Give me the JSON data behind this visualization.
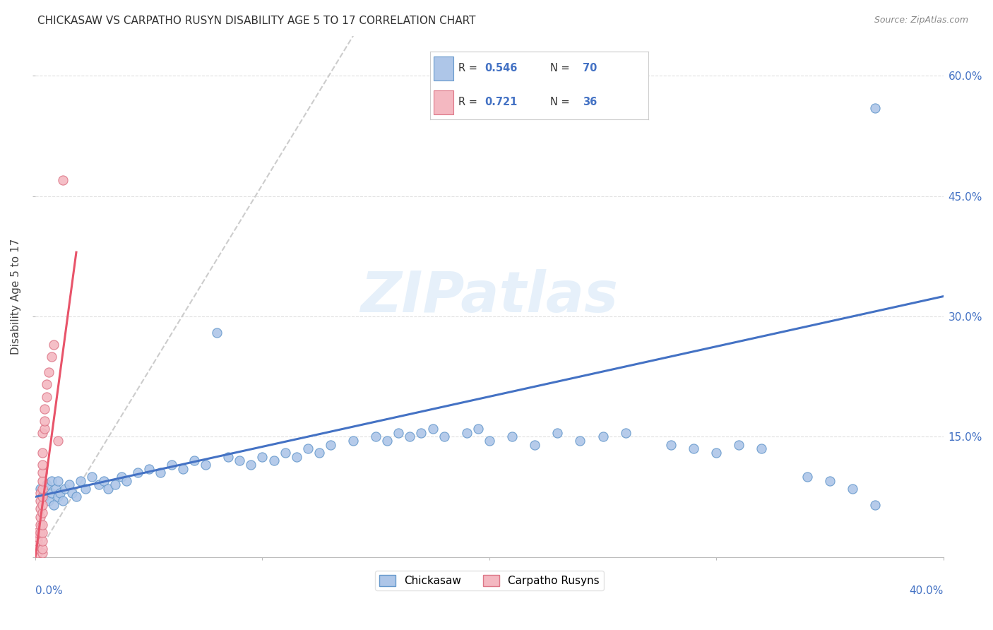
{
  "title": "CHICKASAW VS CARPATHO RUSYN DISABILITY AGE 5 TO 17 CORRELATION CHART",
  "source": "Source: ZipAtlas.com",
  "ylabel": "Disability Age 5 to 17",
  "xlim": [
    0.0,
    0.4
  ],
  "ylim": [
    0.0,
    0.65
  ],
  "legend_entries": [
    {
      "label": "Chickasaw",
      "color": "#aec6e8",
      "edge_color": "#6699cc",
      "R": "0.546",
      "N": "70"
    },
    {
      "label": "Carpatho Rusyns",
      "color": "#f4b8c1",
      "edge_color": "#dd7788",
      "R": "0.721",
      "N": "36"
    }
  ],
  "watermark": "ZIPatlas",
  "blue_line_color": "#4472c4",
  "pink_line_color": "#e8546a",
  "dashed_line_color": "#c0c0c0",
  "blue_regression": [
    0.0,
    0.075,
    0.4,
    0.325
  ],
  "pink_regression": [
    0.0,
    0.0,
    0.018,
    0.38
  ],
  "dashed_regression": [
    0.0,
    0.0,
    0.14,
    0.65
  ],
  "grid_color": "#e0e0e0",
  "right_tick_color": "#4472c4",
  "right_yticks": [
    0.15,
    0.3,
    0.45,
    0.6
  ],
  "right_yticklabels": [
    "15.0%",
    "30.0%",
    "45.0%",
    "60.0%"
  ],
  "x_label_color": "#4472c4",
  "chickasaw_x": [
    0.002,
    0.004,
    0.005,
    0.006,
    0.007,
    0.007,
    0.008,
    0.009,
    0.01,
    0.01,
    0.011,
    0.012,
    0.013,
    0.015,
    0.016,
    0.018,
    0.02,
    0.022,
    0.025,
    0.028,
    0.03,
    0.032,
    0.035,
    0.038,
    0.04,
    0.045,
    0.05,
    0.055,
    0.06,
    0.065,
    0.07,
    0.075,
    0.08,
    0.085,
    0.09,
    0.095,
    0.1,
    0.105,
    0.11,
    0.115,
    0.12,
    0.125,
    0.13,
    0.14,
    0.15,
    0.155,
    0.16,
    0.165,
    0.17,
    0.175,
    0.18,
    0.19,
    0.195,
    0.2,
    0.21,
    0.22,
    0.23,
    0.24,
    0.25,
    0.26,
    0.28,
    0.29,
    0.3,
    0.31,
    0.32,
    0.34,
    0.35,
    0.36,
    0.37,
    0.37
  ],
  "chickasaw_y": [
    0.085,
    0.075,
    0.09,
    0.07,
    0.08,
    0.095,
    0.065,
    0.085,
    0.075,
    0.095,
    0.08,
    0.07,
    0.085,
    0.09,
    0.08,
    0.075,
    0.095,
    0.085,
    0.1,
    0.09,
    0.095,
    0.085,
    0.09,
    0.1,
    0.095,
    0.105,
    0.11,
    0.105,
    0.115,
    0.11,
    0.12,
    0.115,
    0.28,
    0.125,
    0.12,
    0.115,
    0.125,
    0.12,
    0.13,
    0.125,
    0.135,
    0.13,
    0.14,
    0.145,
    0.15,
    0.145,
    0.155,
    0.15,
    0.155,
    0.16,
    0.15,
    0.155,
    0.16,
    0.145,
    0.15,
    0.14,
    0.155,
    0.145,
    0.15,
    0.155,
    0.14,
    0.135,
    0.13,
    0.14,
    0.135,
    0.1,
    0.095,
    0.085,
    0.56,
    0.065
  ],
  "carpatho_x": [
    0.001,
    0.001,
    0.001,
    0.001,
    0.001,
    0.001,
    0.002,
    0.002,
    0.002,
    0.002,
    0.002,
    0.002,
    0.003,
    0.003,
    0.003,
    0.003,
    0.003,
    0.003,
    0.003,
    0.003,
    0.003,
    0.003,
    0.003,
    0.003,
    0.003,
    0.003,
    0.004,
    0.004,
    0.004,
    0.005,
    0.005,
    0.006,
    0.007,
    0.008,
    0.01,
    0.012
  ],
  "carpatho_y": [
    0.005,
    0.01,
    0.015,
    0.02,
    0.025,
    0.03,
    0.03,
    0.04,
    0.05,
    0.06,
    0.07,
    0.08,
    0.005,
    0.01,
    0.02,
    0.03,
    0.04,
    0.055,
    0.065,
    0.075,
    0.085,
    0.095,
    0.105,
    0.115,
    0.13,
    0.155,
    0.16,
    0.17,
    0.185,
    0.2,
    0.215,
    0.23,
    0.25,
    0.265,
    0.145,
    0.47
  ]
}
